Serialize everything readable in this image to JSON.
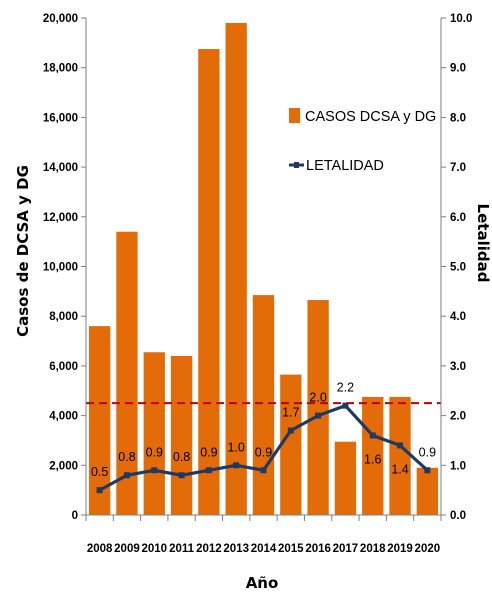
{
  "chart_data": {
    "type": "bar",
    "categories": [
      "2008",
      "2009",
      "2010",
      "2011",
      "2012",
      "2013",
      "2014",
      "2015",
      "2016",
      "2017",
      "2018",
      "2019",
      "2020"
    ],
    "series": [
      {
        "name": "CASOS DCSA y DG",
        "type": "bar",
        "axis": "left",
        "color": "#E36C09",
        "values": [
          7600,
          11400,
          6550,
          6400,
          18750,
          19800,
          8850,
          5650,
          8650,
          2950,
          4750,
          4750,
          1900
        ]
      },
      {
        "name": "LETALIDAD",
        "type": "line",
        "axis": "right",
        "color": "#1F3864",
        "values": [
          0.5,
          0.8,
          0.9,
          0.8,
          0.9,
          1.0,
          0.9,
          1.7,
          2.0,
          2.2,
          1.6,
          1.4,
          0.9
        ],
        "labels": [
          "0.5",
          "0.8",
          "0.9",
          "0.8",
          "0.9",
          "1.0",
          "0.9",
          "1.7",
          "2.0",
          "2.2",
          "1.6",
          "1.4",
          "0.9"
        ]
      }
    ],
    "reference_line": {
      "axis": "right",
      "value": 2.25,
      "color": "#C00000",
      "style": "dashed"
    },
    "xlabel": "Año",
    "ylabel": "Casos de DCSA y DG",
    "y2label": "Letalidad",
    "ylim": [
      0,
      20000
    ],
    "y2lim": [
      0,
      10
    ],
    "yticks": [
      "0",
      "2,000",
      "4,000",
      "6,000",
      "8,000",
      "10,000",
      "12,000",
      "14,000",
      "16,000",
      "18,000",
      "20,000"
    ],
    "y2ticks": [
      "0.0",
      "1.0",
      "2.0",
      "3.0",
      "4.0",
      "5.0",
      "6.0",
      "7.0",
      "8.0",
      "9.0",
      "10.0"
    ],
    "legend": "top-right",
    "grid": false
  }
}
